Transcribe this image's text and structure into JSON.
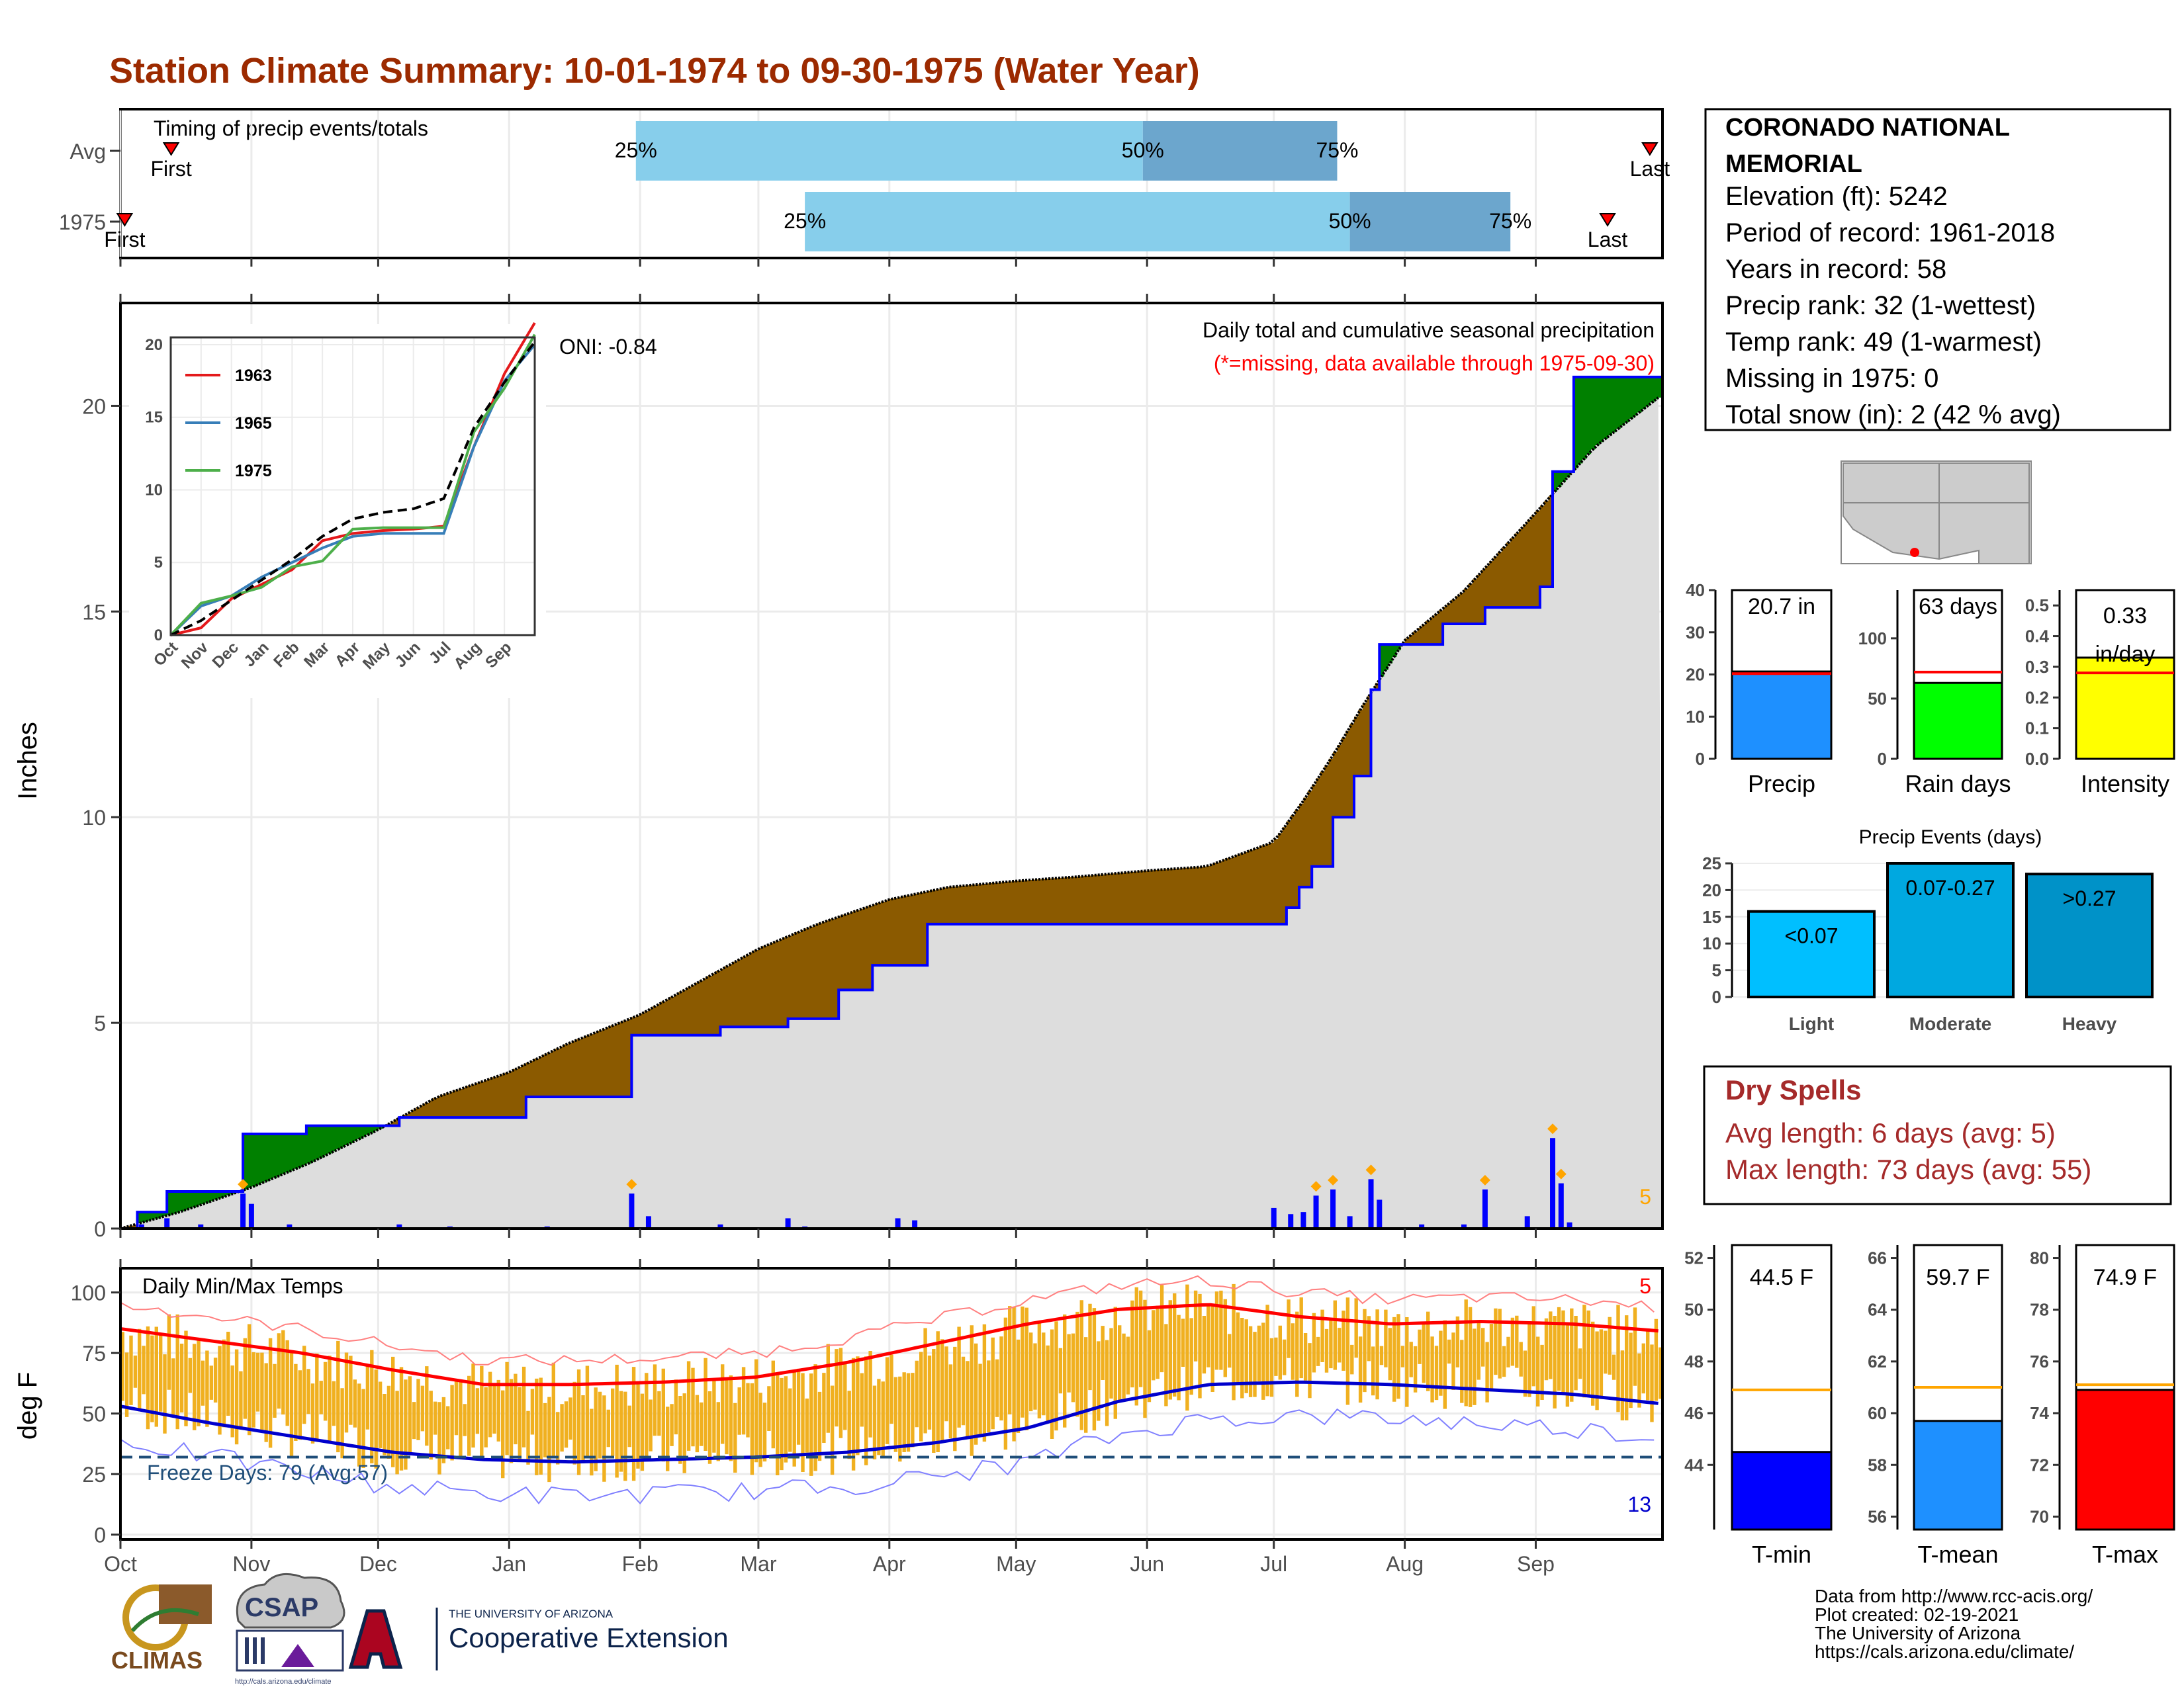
{
  "title": "Station Climate Summary: 10-01-1974 to 09-30-1975 (Water Year)",
  "timing": {
    "label": "Timing of precip events/totals",
    "rows": [
      {
        "label": "Avg",
        "first_date": "1974-10-13",
        "p25": "1975-01-31",
        "p50": "1975-05-31",
        "p75": "1975-07-16",
        "last_date": "1975-09-28",
        "marks": {
          "first": "First",
          "p25": "25%",
          "p50": "50%",
          "p75": "75%",
          "last": "Last"
        }
      },
      {
        "label": "1975",
        "first_date": "1974-10-02",
        "p25": "1975-03-12",
        "p50": "1975-07-19",
        "p75": "1975-08-26",
        "last_date": "1975-09-18",
        "marks": {
          "first": "First",
          "p25": "25%",
          "p50": "50%",
          "p75": "75%",
          "last": "Last"
        }
      }
    ],
    "colors": {
      "light": "#87CEEB",
      "dark": "#6CA6CD",
      "marker": "#FF0000"
    }
  },
  "chart_data": [
    {
      "type": "area",
      "title": "Daily total and cumulative seasonal precipitation",
      "subtitle": "(*=missing, data available through 1975-09-30)",
      "ylabel": "Inches",
      "oni": "ONI: -0.84",
      "ylim": [
        0,
        22.5
      ],
      "yticks": [
        0,
        5,
        10,
        15,
        20
      ],
      "month_ticks": [
        "Oct",
        "Nov",
        "Dec",
        "Jan",
        "Feb",
        "Mar",
        "Apr",
        "May",
        "Jun",
        "Jul",
        "Aug",
        "Sep"
      ],
      "count_label": "5",
      "average_cumulative": {
        "x": [
          "1974-10-01",
          "1974-10-15",
          "1974-11-01",
          "1974-11-15",
          "1974-12-01",
          "1974-12-15",
          "1975-01-01",
          "1975-01-15",
          "1975-02-01",
          "1975-02-15",
          "1975-03-01",
          "1975-03-15",
          "1975-04-01",
          "1975-04-15",
          "1975-05-01",
          "1975-05-15",
          "1975-06-01",
          "1975-06-15",
          "1975-07-01",
          "1975-07-08",
          "1975-07-15",
          "1975-07-22",
          "1975-08-01",
          "1975-08-15",
          "1975-09-01",
          "1975-09-15",
          "1975-09-30"
        ],
        "y": [
          0,
          0.4,
          1,
          1.6,
          2.4,
          3.2,
          3.8,
          4.5,
          5.2,
          6,
          6.8,
          7.4,
          8.0,
          8.3,
          8.45,
          8.55,
          8.7,
          8.8,
          9.4,
          10.4,
          11.5,
          12.7,
          14.3,
          15.5,
          17.4,
          19.0,
          20.2
        ]
      },
      "series": [
        {
          "name": "1975",
          "x": [
            "1974-10-01",
            "1974-10-05",
            "1974-10-12",
            "1974-10-30",
            "1974-11-14",
            "1974-12-06",
            "1975-01-05",
            "1975-01-30",
            "1975-02-20",
            "1975-03-08",
            "1975-03-20",
            "1975-03-28",
            "1975-04-10",
            "1975-07-01",
            "1975-07-04",
            "1975-07-07",
            "1975-07-10",
            "1975-07-15",
            "1975-07-20",
            "1975-07-24",
            "1975-07-26",
            "1975-08-04",
            "1975-08-10",
            "1975-08-20",
            "1975-09-02",
            "1975-09-05",
            "1975-09-10",
            "1975-09-30"
          ],
          "y": [
            0,
            0.4,
            0.9,
            2.3,
            2.5,
            2.7,
            3.2,
            4.7,
            4.9,
            5.1,
            5.8,
            6.4,
            7.4,
            7.4,
            7.8,
            8.3,
            8.8,
            10.0,
            11.0,
            13.1,
            14.2,
            14.2,
            14.7,
            15.1,
            15.6,
            18.4,
            20.7,
            20.7
          ]
        },
        {
          "name": "daily_precip",
          "x": [
            "1974-10-06",
            "1974-10-12",
            "1974-10-20",
            "1974-10-30",
            "1974-11-01",
            "1974-11-10",
            "1974-12-06",
            "1974-12-18",
            "1975-01-10",
            "1975-01-30",
            "1975-02-03",
            "1975-02-20",
            "1975-03-08",
            "1975-03-12",
            "1975-04-03",
            "1975-04-07",
            "1975-05-20",
            "1975-07-01",
            "1975-07-05",
            "1975-07-08",
            "1975-07-11",
            "1975-07-15",
            "1975-07-19",
            "1975-07-24",
            "1975-07-26",
            "1975-08-05",
            "1975-08-15",
            "1975-08-20",
            "1975-08-30",
            "1975-09-05",
            "1975-09-07",
            "1975-09-09"
          ],
          "y": [
            0.1,
            0.25,
            0.1,
            0.85,
            0.6,
            0.1,
            0.1,
            0.05,
            0.05,
            0.85,
            0.3,
            0.1,
            0.25,
            0.05,
            0.25,
            0.2,
            0.02,
            0.5,
            0.35,
            0.4,
            0.8,
            0.95,
            0.3,
            1.2,
            0.7,
            0.1,
            0.1,
            0.95,
            0.3,
            2.2,
            1.1,
            0.15
          ]
        }
      ],
      "colors": {
        "above": "#008000",
        "below": "#8B5A00",
        "avg_fill": "#DDDDDD",
        "line": "#0000FF",
        "marker": "#FFA500"
      }
    },
    {
      "type": "line",
      "inset": true,
      "xticks": [
        "Oct",
        "Nov",
        "Dec",
        "Jan",
        "Feb",
        "Mar",
        "Apr",
        "May",
        "Jun",
        "Jul",
        "Aug",
        "Sep"
      ],
      "yticks": [
        0,
        5,
        10,
        15,
        20
      ],
      "ylim": [
        0,
        20.5
      ],
      "series": [
        {
          "name": "1963",
          "color": "#E41A1C",
          "y": [
            0,
            0.5,
            2.5,
            3.5,
            4.5,
            6.5,
            7,
            7.2,
            7.3,
            7.5,
            13,
            18,
            21.5
          ]
        },
        {
          "name": "1965",
          "color": "#377EB8",
          "y": [
            0,
            2,
            2.7,
            4,
            5,
            6,
            6.8,
            7,
            7,
            7,
            13,
            17.5,
            20
          ]
        },
        {
          "name": "1975",
          "color": "#4DAF4A",
          "y": [
            0,
            2.2,
            2.7,
            3.3,
            4.7,
            5.1,
            7.3,
            7.4,
            7.4,
            7.4,
            14,
            17,
            20.7
          ]
        },
        {
          "name": "avg",
          "color": "#000000",
          "y": [
            0,
            1,
            2.4,
            3.8,
            5.2,
            6.8,
            8,
            8.45,
            8.7,
            9.4,
            14.3,
            17.4,
            20.2
          ]
        }
      ]
    },
    {
      "type": "bar",
      "title": "Daily Min/Max Temps",
      "ylabel": "deg F",
      "ylim": [
        -2,
        110
      ],
      "yticks": [
        0,
        25,
        50,
        75,
        100
      ],
      "month_ticks": [
        "Oct",
        "Nov",
        "Dec",
        "Jan",
        "Feb",
        "Mar",
        "Apr",
        "May",
        "Jun",
        "Jul",
        "Aug",
        "Sep"
      ],
      "freeze_label": "Freeze Days: 79 (Avg:57)",
      "freeze_line": 32,
      "hot_count": "5",
      "cold_count": "13",
      "avg_max": [
        85,
        80,
        75,
        68,
        62,
        62,
        63,
        65,
        71,
        79,
        87,
        93,
        95,
        90,
        87,
        88,
        87,
        84
      ],
      "avg_min": [
        53,
        46,
        40,
        34,
        31,
        30,
        31,
        32,
        34,
        38,
        44,
        55,
        62,
        63,
        62,
        60,
        58,
        54
      ],
      "colors": {
        "bar": "#F0B020",
        "max_line": "#FF0000",
        "min_line": "#0000CC",
        "freeze": "#1F4E79"
      }
    },
    {
      "type": "bar",
      "name": "precip_total",
      "label": "20.7 in",
      "xlabel": "Precip",
      "value": 20.7,
      "avg": 20.2,
      "ylim": [
        0,
        40
      ],
      "yticks": [
        0,
        10,
        20,
        30,
        40
      ],
      "color": "#1E90FF"
    },
    {
      "type": "bar",
      "name": "rain_days",
      "label": "63 days",
      "xlabel": "Rain days",
      "value": 63,
      "avg": 72,
      "ylim": [
        0,
        140
      ],
      "yticks": [
        0,
        50,
        100
      ],
      "color": "#00FF00"
    },
    {
      "type": "bar",
      "name": "intensity",
      "label": "0.33",
      "sublabel": "in/day",
      "xlabel": "Intensity",
      "value": 0.33,
      "avg": 0.28,
      "ylim": [
        0,
        0.55
      ],
      "yticks": [
        0.0,
        0.1,
        0.2,
        0.3,
        0.4,
        0.5
      ],
      "color": "#FFFF00"
    },
    {
      "type": "bar",
      "name": "precip_events",
      "title": "Precip Events (days)",
      "categories": [
        "Light",
        "Moderate",
        "Heavy"
      ],
      "labels": [
        "<0.07",
        "0.07-0.27",
        ">0.27"
      ],
      "values": [
        16,
        25,
        23
      ],
      "ylim": [
        0,
        25
      ],
      "yticks": [
        0,
        5,
        10,
        15,
        20,
        25
      ],
      "colors": [
        "#00BFFF",
        "#00A8E0",
        "#0092C8"
      ]
    },
    {
      "type": "bar",
      "name": "tmin",
      "label": "44.5 F",
      "xlabel": "T-min",
      "value": 44.5,
      "avg": 46.9,
      "ylim": [
        41.5,
        52.5
      ],
      "yticks": [
        44,
        46,
        48,
        50,
        52
      ],
      "color": "#0000FF"
    },
    {
      "type": "bar",
      "name": "tmean",
      "label": "59.7 F",
      "xlabel": "T-mean",
      "value": 59.7,
      "avg": 61.0,
      "ylim": [
        55.5,
        66.5
      ],
      "yticks": [
        56,
        58,
        60,
        62,
        64,
        66
      ],
      "color": "#1E90FF"
    },
    {
      "type": "bar",
      "name": "tmax",
      "label": "74.9 F",
      "xlabel": "T-max",
      "value": 74.9,
      "avg": 75.1,
      "ylim": [
        69.5,
        80.5
      ],
      "yticks": [
        70,
        72,
        74,
        76,
        78,
        80
      ],
      "color": "#FF0000"
    }
  ],
  "info": {
    "station": "CORONADO NATIONAL MEMORIAL",
    "lines": [
      "Elevation (ft): 5242",
      "Period of record: 1961-2018",
      "Years in record: 58",
      "Precip rank: 32 (1-wettest)",
      "Temp rank: 49 (1-warmest)",
      "Missing in 1975: 0",
      "Total snow (in): 2 (42 % avg)"
    ]
  },
  "dry_spells": {
    "title": "Dry Spells",
    "avg": "Avg length: 6 days (avg: 5)",
    "max": "Max length: 73 days (avg: 55)"
  },
  "footer": {
    "lines": [
      "Data from http://www.rcc-acis.org/",
      "Plot created: 02-19-2021",
      "The University of Arizona",
      "https://cals.arizona.edu/climate/"
    ]
  },
  "logos": {
    "climas": "CLIMAS",
    "csap": "CSAP",
    "csap_url": "http://cals.arizona.edu/climate",
    "ua_small": "THE UNIVERSITY OF ARIZONA",
    "ua_big": "Cooperative Extension"
  }
}
